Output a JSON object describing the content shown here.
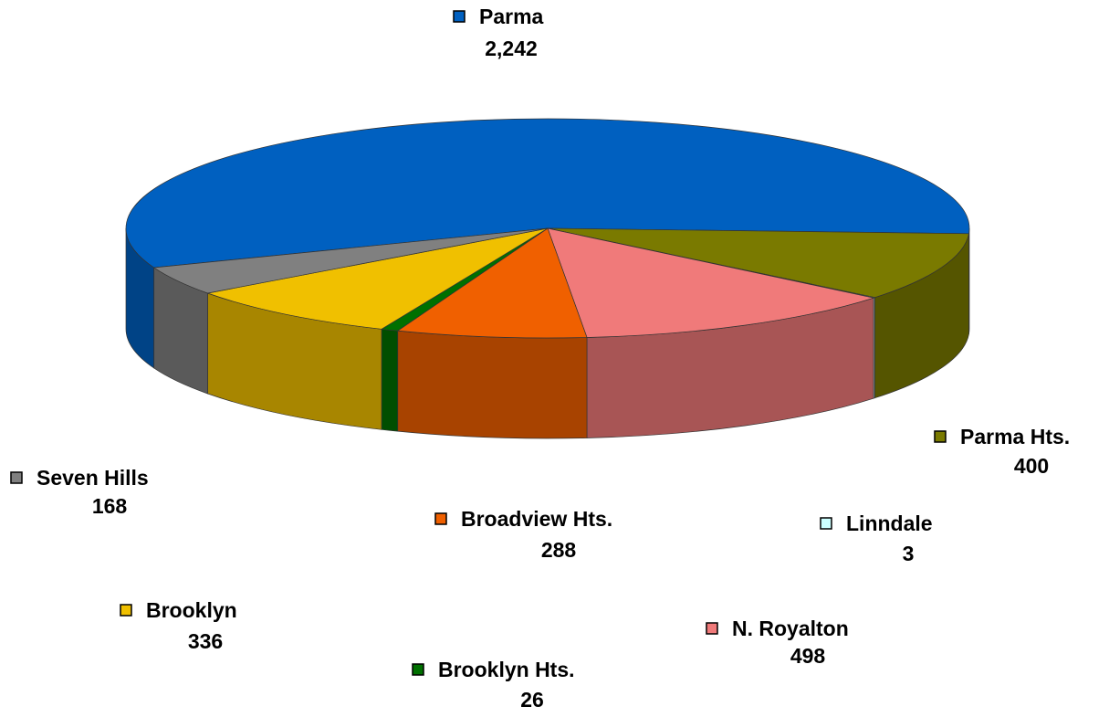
{
  "chart_data": {
    "type": "pie",
    "categories": [
      "Parma",
      "Parma Hts.",
      "Linndale",
      "N. Royalton",
      "Broadview Hts.",
      "Brooklyn Hts.",
      "Brooklyn",
      "Seven Hills"
    ],
    "values": [
      2242,
      400,
      3,
      498,
      288,
      26,
      336,
      168
    ],
    "value_labels": [
      "2,242",
      "400",
      "3",
      "498",
      "288",
      "26",
      "336",
      "168"
    ],
    "colors": [
      "#0060c0",
      "#7a7a00",
      "#ccffff",
      "#f07a7a",
      "#f06000",
      "#007000",
      "#f0c000",
      "#808080"
    ]
  }
}
